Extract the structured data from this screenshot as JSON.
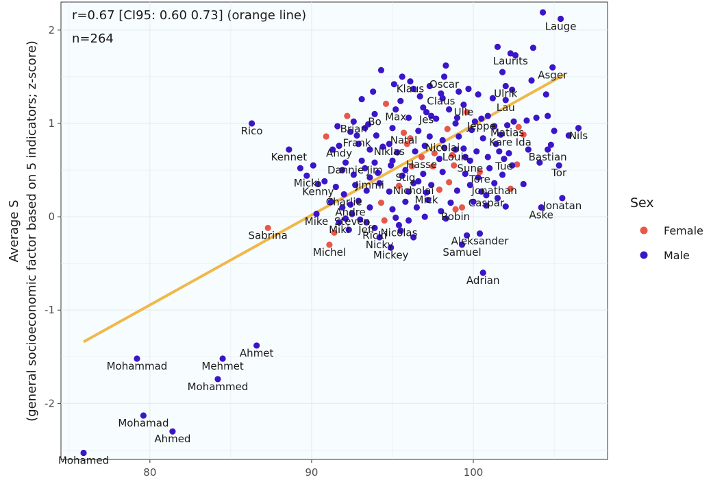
{
  "chart_data": {
    "type": "scatter",
    "annotations": [
      "r=0.67 [CI95: 0.60 0.73] (orange line)",
      "n=264"
    ],
    "ylabel_lines": [
      "Average S",
      "(general socioeconomic factor based on 5 indicators; z-score)"
    ],
    "xlabel": "",
    "xlim": [
      74.5,
      108.3
    ],
    "ylim": [
      -2.6,
      2.3
    ],
    "x_ticks": [
      80,
      90,
      100
    ],
    "y_ticks": [
      2,
      1,
      0,
      -1,
      -2
    ],
    "grid": true,
    "legend": {
      "title": "Sex",
      "placement": "right",
      "entries": [
        {
          "label": "Female",
          "color": "#e8584a"
        },
        {
          "label": "Male",
          "color": "#3a16c8"
        }
      ]
    },
    "fit_line": {
      "color": "#f0b84a",
      "from": [
        75.9,
        -1.34
      ],
      "to": [
        105.6,
        1.52
      ]
    },
    "colors": {
      "Female": "#e8584a",
      "Male": "#3a16c8"
    },
    "labeled_points": [
      {
        "name": "Lauge",
        "x": 105.4,
        "y": 2.12,
        "sex": "Male"
      },
      {
        "name": "Laurits",
        "x": 102.3,
        "y": 1.75,
        "sex": "Male"
      },
      {
        "name": "Asger",
        "x": 104.9,
        "y": 1.6,
        "sex": "Male"
      },
      {
        "name": "Oscar",
        "x": 98.2,
        "y": 1.5,
        "sex": "Male"
      },
      {
        "name": "Ulrik",
        "x": 102.0,
        "y": 1.4,
        "sex": "Male"
      },
      {
        "name": "Klaus",
        "x": 96.1,
        "y": 1.45,
        "sex": "Male"
      },
      {
        "name": "Claus",
        "x": 98.0,
        "y": 1.32,
        "sex": "Male"
      },
      {
        "name": "Lau",
        "x": 102.0,
        "y": 1.25,
        "sex": "Male"
      },
      {
        "name": "Ulle",
        "x": 99.4,
        "y": 1.2,
        "sex": "Male"
      },
      {
        "name": "Bo",
        "x": 93.9,
        "y": 1.1,
        "sex": "Male"
      },
      {
        "name": "Max",
        "x": 95.2,
        "y": 1.15,
        "sex": "Male"
      },
      {
        "name": "Jes",
        "x": 97.1,
        "y": 1.12,
        "sex": "Male"
      },
      {
        "name": "Brian",
        "x": 92.6,
        "y": 1.02,
        "sex": "Male"
      },
      {
        "name": "Jeppe",
        "x": 100.5,
        "y": 1.05,
        "sex": "Male"
      },
      {
        "name": "Matias",
        "x": 102.1,
        "y": 0.98,
        "sex": "Male"
      },
      {
        "name": "Nils",
        "x": 106.5,
        "y": 0.95,
        "sex": "Male"
      },
      {
        "name": "Rico",
        "x": 86.3,
        "y": 1.0,
        "sex": "Male"
      },
      {
        "name": "Frank",
        "x": 92.8,
        "y": 0.87,
        "sex": "Male"
      },
      {
        "name": "Natal",
        "x": 95.7,
        "y": 0.9,
        "sex": "Female"
      },
      {
        "name": "Kare",
        "x": 101.7,
        "y": 0.88,
        "sex": "Male"
      },
      {
        "name": "Ida",
        "x": 103.1,
        "y": 0.88,
        "sex": "Female"
      },
      {
        "name": "Niklas",
        "x": 94.8,
        "y": 0.78,
        "sex": "Male"
      },
      {
        "name": "Nicolai",
        "x": 98.1,
        "y": 0.82,
        "sex": "Male"
      },
      {
        "name": "Andy",
        "x": 91.7,
        "y": 0.76,
        "sex": "Male"
      },
      {
        "name": "Kennet",
        "x": 88.6,
        "y": 0.72,
        "sex": "Male"
      },
      {
        "name": "Bastian",
        "x": 104.6,
        "y": 0.72,
        "sex": "Male"
      },
      {
        "name": "Louis",
        "x": 98.9,
        "y": 0.72,
        "sex": "Male"
      },
      {
        "name": "Hasse",
        "x": 96.8,
        "y": 0.64,
        "sex": "Female"
      },
      {
        "name": "Tue",
        "x": 101.9,
        "y": 0.62,
        "sex": "Male"
      },
      {
        "name": "Sune",
        "x": 99.8,
        "y": 0.6,
        "sex": "Male"
      },
      {
        "name": "Dannie",
        "x": 92.1,
        "y": 0.58,
        "sex": "Male"
      },
      {
        "name": "Jim",
        "x": 93.9,
        "y": 0.58,
        "sex": "Male"
      },
      {
        "name": "Tor",
        "x": 105.3,
        "y": 0.55,
        "sex": "Male"
      },
      {
        "name": "Stig",
        "x": 95.8,
        "y": 0.5,
        "sex": "Male"
      },
      {
        "name": "Tore",
        "x": 100.4,
        "y": 0.48,
        "sex": "Female"
      },
      {
        "name": "Micki",
        "x": 89.7,
        "y": 0.44,
        "sex": "Male"
      },
      {
        "name": "Jimmi",
        "x": 93.6,
        "y": 0.42,
        "sex": "Male"
      },
      {
        "name": "Kenny",
        "x": 90.4,
        "y": 0.35,
        "sex": "Male"
      },
      {
        "name": "Nicholai",
        "x": 96.3,
        "y": 0.36,
        "sex": "Male"
      },
      {
        "name": "Jonathan",
        "x": 101.3,
        "y": 0.36,
        "sex": "Male"
      },
      {
        "name": "Mick",
        "x": 97.1,
        "y": 0.26,
        "sex": "Male"
      },
      {
        "name": "Charlie",
        "x": 92.0,
        "y": 0.24,
        "sex": "Male"
      },
      {
        "name": "Caspar",
        "x": 100.8,
        "y": 0.23,
        "sex": "Male"
      },
      {
        "name": "Jonatan",
        "x": 105.5,
        "y": 0.2,
        "sex": "Male"
      },
      {
        "name": "Andre",
        "x": 92.4,
        "y": 0.13,
        "sex": "Male"
      },
      {
        "name": "Aske",
        "x": 104.2,
        "y": 0.1,
        "sex": "Male"
      },
      {
        "name": "Robin",
        "x": 98.9,
        "y": 0.08,
        "sex": "Female"
      },
      {
        "name": "Mike",
        "x": 90.3,
        "y": 0.03,
        "sex": "Male"
      },
      {
        "name": "Steven",
        "x": 92.5,
        "y": 0.03,
        "sex": "Male"
      },
      {
        "name": "Jeff",
        "x": 93.4,
        "y": -0.06,
        "sex": "Male"
      },
      {
        "name": "Miki",
        "x": 91.7,
        "y": -0.06,
        "sex": "Male"
      },
      {
        "name": "Nicolas",
        "x": 95.4,
        "y": -0.09,
        "sex": "Male"
      },
      {
        "name": "Ricki",
        "x": 93.9,
        "y": -0.12,
        "sex": "Male"
      },
      {
        "name": "Sabrina",
        "x": 87.3,
        "y": -0.12,
        "sex": "Female"
      },
      {
        "name": "Nicky",
        "x": 94.2,
        "y": -0.22,
        "sex": "Male"
      },
      {
        "name": "Aleksander",
        "x": 100.4,
        "y": -0.18,
        "sex": "Male"
      },
      {
        "name": "Michel",
        "x": 91.1,
        "y": -0.3,
        "sex": "Female"
      },
      {
        "name": "Samuel",
        "x": 99.3,
        "y": -0.3,
        "sex": "Male"
      },
      {
        "name": "Mickey",
        "x": 94.9,
        "y": -0.33,
        "sex": "Male"
      },
      {
        "name": "Adrian",
        "x": 100.6,
        "y": -0.6,
        "sex": "Male"
      },
      {
        "name": "Ahmet",
        "x": 86.6,
        "y": -1.38,
        "sex": "Male"
      },
      {
        "name": "Mohammad",
        "x": 79.2,
        "y": -1.52,
        "sex": "Male"
      },
      {
        "name": "Mehmet",
        "x": 84.5,
        "y": -1.52,
        "sex": "Male"
      },
      {
        "name": "Mohammed",
        "x": 84.2,
        "y": -1.74,
        "sex": "Male"
      },
      {
        "name": "Mohamad",
        "x": 79.6,
        "y": -2.13,
        "sex": "Male"
      },
      {
        "name": "Ahmed",
        "x": 81.4,
        "y": -2.3,
        "sex": "Male"
      },
      {
        "name": "Mohamed",
        "x": 75.9,
        "y": -2.53,
        "sex": "Male"
      }
    ],
    "unlabeled_points": [
      {
        "x": 94.3,
        "y": 1.57,
        "sex": "Male"
      },
      {
        "x": 95.1,
        "y": 1.42,
        "sex": "Male"
      },
      {
        "x": 95.6,
        "y": 1.5,
        "sex": "Male"
      },
      {
        "x": 96.3,
        "y": 1.37,
        "sex": "Male"
      },
      {
        "x": 96.7,
        "y": 1.29,
        "sex": "Male"
      },
      {
        "x": 97.3,
        "y": 1.4,
        "sex": "Male"
      },
      {
        "x": 98.1,
        "y": 1.27,
        "sex": "Male"
      },
      {
        "x": 99.1,
        "y": 1.34,
        "sex": "Male"
      },
      {
        "x": 99.7,
        "y": 1.37,
        "sex": "Male"
      },
      {
        "x": 100.3,
        "y": 1.31,
        "sex": "Male"
      },
      {
        "x": 101.2,
        "y": 1.27,
        "sex": "Male"
      },
      {
        "x": 103.7,
        "y": 1.81,
        "sex": "Male"
      },
      {
        "x": 101.5,
        "y": 1.82,
        "sex": "Male"
      },
      {
        "x": 104.3,
        "y": 2.19,
        "sex": "Male"
      },
      {
        "x": 102.6,
        "y": 1.73,
        "sex": "Male"
      },
      {
        "x": 101.8,
        "y": 1.55,
        "sex": "Male"
      },
      {
        "x": 103.6,
        "y": 1.46,
        "sex": "Male"
      },
      {
        "x": 102.4,
        "y": 1.36,
        "sex": "Male"
      },
      {
        "x": 93.1,
        "y": 1.26,
        "sex": "Male"
      },
      {
        "x": 93.8,
        "y": 1.34,
        "sex": "Male"
      },
      {
        "x": 94.6,
        "y": 1.21,
        "sex": "Female"
      },
      {
        "x": 95.5,
        "y": 1.24,
        "sex": "Male"
      },
      {
        "x": 96.9,
        "y": 1.17,
        "sex": "Male"
      },
      {
        "x": 97.7,
        "y": 1.05,
        "sex": "Male"
      },
      {
        "x": 98.5,
        "y": 1.15,
        "sex": "Male"
      },
      {
        "x": 99.0,
        "y": 1.06,
        "sex": "Male"
      },
      {
        "x": 99.6,
        "y": 1.12,
        "sex": "Female"
      },
      {
        "x": 100.1,
        "y": 1.02,
        "sex": "Male"
      },
      {
        "x": 100.9,
        "y": 1.08,
        "sex": "Male"
      },
      {
        "x": 101.3,
        "y": 0.97,
        "sex": "Male"
      },
      {
        "x": 102.5,
        "y": 1.02,
        "sex": "Male"
      },
      {
        "x": 103.3,
        "y": 1.03,
        "sex": "Male"
      },
      {
        "x": 103.9,
        "y": 1.06,
        "sex": "Male"
      },
      {
        "x": 104.6,
        "y": 1.08,
        "sex": "Male"
      },
      {
        "x": 105.0,
        "y": 0.92,
        "sex": "Male"
      },
      {
        "x": 105.9,
        "y": 0.87,
        "sex": "Male"
      },
      {
        "x": 102.8,
        "y": 0.96,
        "sex": "Female"
      },
      {
        "x": 92.2,
        "y": 1.08,
        "sex": "Female"
      },
      {
        "x": 91.6,
        "y": 0.97,
        "sex": "Male"
      },
      {
        "x": 92.4,
        "y": 0.91,
        "sex": "Male"
      },
      {
        "x": 93.3,
        "y": 0.95,
        "sex": "Male"
      },
      {
        "x": 94.0,
        "y": 0.87,
        "sex": "Male"
      },
      {
        "x": 95.0,
        "y": 0.95,
        "sex": "Male"
      },
      {
        "x": 96.1,
        "y": 0.84,
        "sex": "Female"
      },
      {
        "x": 96.6,
        "y": 0.92,
        "sex": "Male"
      },
      {
        "x": 97.3,
        "y": 0.86,
        "sex": "Male"
      },
      {
        "x": 98.4,
        "y": 0.94,
        "sex": "Female"
      },
      {
        "x": 99.1,
        "y": 0.86,
        "sex": "Male"
      },
      {
        "x": 99.9,
        "y": 0.93,
        "sex": "Male"
      },
      {
        "x": 100.6,
        "y": 0.84,
        "sex": "Male"
      },
      {
        "x": 101.4,
        "y": 0.78,
        "sex": "Male"
      },
      {
        "x": 90.9,
        "y": 0.86,
        "sex": "Female"
      },
      {
        "x": 91.3,
        "y": 0.72,
        "sex": "Male"
      },
      {
        "x": 92.9,
        "y": 0.78,
        "sex": "Male"
      },
      {
        "x": 93.6,
        "y": 0.72,
        "sex": "Male"
      },
      {
        "x": 94.4,
        "y": 0.75,
        "sex": "Male"
      },
      {
        "x": 95.3,
        "y": 0.69,
        "sex": "Male"
      },
      {
        "x": 95.9,
        "y": 0.78,
        "sex": "Female"
      },
      {
        "x": 96.4,
        "y": 0.7,
        "sex": "Male"
      },
      {
        "x": 97.0,
        "y": 0.76,
        "sex": "Male"
      },
      {
        "x": 97.6,
        "y": 0.68,
        "sex": "Female"
      },
      {
        "x": 98.2,
        "y": 0.74,
        "sex": "Male"
      },
      {
        "x": 98.7,
        "y": 0.66,
        "sex": "Female"
      },
      {
        "x": 99.4,
        "y": 0.73,
        "sex": "Male"
      },
      {
        "x": 100.2,
        "y": 0.7,
        "sex": "Male"
      },
      {
        "x": 100.9,
        "y": 0.64,
        "sex": "Male"
      },
      {
        "x": 101.6,
        "y": 0.7,
        "sex": "Male"
      },
      {
        "x": 102.2,
        "y": 0.68,
        "sex": "Male"
      },
      {
        "x": 102.7,
        "y": 0.56,
        "sex": "Female"
      },
      {
        "x": 103.4,
        "y": 0.72,
        "sex": "Male"
      },
      {
        "x": 104.1,
        "y": 0.58,
        "sex": "Male"
      },
      {
        "x": 104.8,
        "y": 0.77,
        "sex": "Male"
      },
      {
        "x": 89.3,
        "y": 0.52,
        "sex": "Male"
      },
      {
        "x": 90.1,
        "y": 0.55,
        "sex": "Male"
      },
      {
        "x": 91.9,
        "y": 0.5,
        "sex": "Male"
      },
      {
        "x": 92.6,
        "y": 0.45,
        "sex": "Male"
      },
      {
        "x": 93.3,
        "y": 0.52,
        "sex": "Male"
      },
      {
        "x": 94.1,
        "y": 0.47,
        "sex": "Male"
      },
      {
        "x": 94.9,
        "y": 0.55,
        "sex": "Male"
      },
      {
        "x": 95.6,
        "y": 0.44,
        "sex": "Male"
      },
      {
        "x": 96.2,
        "y": 0.54,
        "sex": "Female"
      },
      {
        "x": 96.9,
        "y": 0.46,
        "sex": "Male"
      },
      {
        "x": 97.5,
        "y": 0.54,
        "sex": "Female"
      },
      {
        "x": 98.1,
        "y": 0.48,
        "sex": "Male"
      },
      {
        "x": 98.8,
        "y": 0.55,
        "sex": "Female"
      },
      {
        "x": 99.5,
        "y": 0.46,
        "sex": "Male"
      },
      {
        "x": 101.0,
        "y": 0.52,
        "sex": "Male"
      },
      {
        "x": 101.8,
        "y": 0.45,
        "sex": "Male"
      },
      {
        "x": 102.4,
        "y": 0.55,
        "sex": "Male"
      },
      {
        "x": 90.8,
        "y": 0.38,
        "sex": "Male"
      },
      {
        "x": 91.5,
        "y": 0.32,
        "sex": "Male"
      },
      {
        "x": 92.7,
        "y": 0.34,
        "sex": "Male"
      },
      {
        "x": 93.4,
        "y": 0.28,
        "sex": "Male"
      },
      {
        "x": 94.2,
        "y": 0.36,
        "sex": "Male"
      },
      {
        "x": 94.8,
        "y": 0.27,
        "sex": "Male"
      },
      {
        "x": 95.4,
        "y": 0.33,
        "sex": "Female"
      },
      {
        "x": 96.0,
        "y": 0.27,
        "sex": "Male"
      },
      {
        "x": 96.6,
        "y": 0.38,
        "sex": "Male"
      },
      {
        "x": 97.4,
        "y": 0.34,
        "sex": "Male"
      },
      {
        "x": 97.9,
        "y": 0.29,
        "sex": "Female"
      },
      {
        "x": 98.5,
        "y": 0.37,
        "sex": "Female"
      },
      {
        "x": 99.0,
        "y": 0.28,
        "sex": "Male"
      },
      {
        "x": 99.8,
        "y": 0.34,
        "sex": "Male"
      },
      {
        "x": 100.5,
        "y": 0.27,
        "sex": "Male"
      },
      {
        "x": 102.3,
        "y": 0.3,
        "sex": "Female"
      },
      {
        "x": 103.1,
        "y": 0.35,
        "sex": "Male"
      },
      {
        "x": 91.2,
        "y": 0.16,
        "sex": "Male"
      },
      {
        "x": 91.9,
        "y": 0.1,
        "sex": "Male"
      },
      {
        "x": 92.9,
        "y": 0.17,
        "sex": "Male"
      },
      {
        "x": 93.6,
        "y": 0.1,
        "sex": "Male"
      },
      {
        "x": 94.3,
        "y": 0.15,
        "sex": "Female"
      },
      {
        "x": 95.0,
        "y": 0.08,
        "sex": "Male"
      },
      {
        "x": 95.8,
        "y": 0.16,
        "sex": "Male"
      },
      {
        "x": 96.5,
        "y": 0.1,
        "sex": "Male"
      },
      {
        "x": 97.2,
        "y": 0.18,
        "sex": "Male"
      },
      {
        "x": 98.0,
        "y": 0.06,
        "sex": "Male"
      },
      {
        "x": 98.6,
        "y": 0.15,
        "sex": "Male"
      },
      {
        "x": 99.3,
        "y": 0.1,
        "sex": "Female"
      },
      {
        "x": 100.0,
        "y": 0.16,
        "sex": "Male"
      },
      {
        "x": 101.5,
        "y": 0.2,
        "sex": "Male"
      },
      {
        "x": 102.0,
        "y": 0.11,
        "sex": "Male"
      },
      {
        "x": 92.1,
        "y": -0.02,
        "sex": "Male"
      },
      {
        "x": 93.0,
        "y": -0.03,
        "sex": "Male"
      },
      {
        "x": 94.5,
        "y": -0.04,
        "sex": "Female"
      },
      {
        "x": 95.2,
        "y": -0.01,
        "sex": "Male"
      },
      {
        "x": 96.0,
        "y": -0.04,
        "sex": "Male"
      },
      {
        "x": 97.0,
        "y": 0.0,
        "sex": "Male"
      },
      {
        "x": 98.3,
        "y": -0.02,
        "sex": "Male"
      },
      {
        "x": 91.4,
        "y": -0.17,
        "sex": "Female"
      },
      {
        "x": 92.3,
        "y": -0.14,
        "sex": "Male"
      },
      {
        "x": 95.5,
        "y": -0.15,
        "sex": "Male"
      },
      {
        "x": 96.3,
        "y": -0.22,
        "sex": "Male"
      },
      {
        "x": 99.6,
        "y": -0.2,
        "sex": "Male"
      },
      {
        "x": 93.5,
        "y": 0.99,
        "sex": "Male"
      },
      {
        "x": 97.4,
        "y": 1.08,
        "sex": "Male"
      },
      {
        "x": 98.9,
        "y": 1.0,
        "sex": "Male"
      },
      {
        "x": 104.5,
        "y": 1.31,
        "sex": "Male"
      },
      {
        "x": 99.5,
        "y": 0.64,
        "sex": "Male"
      },
      {
        "x": 100.8,
        "y": 0.12,
        "sex": "Male"
      },
      {
        "x": 95.0,
        "y": 0.6,
        "sex": "Male"
      },
      {
        "x": 97.9,
        "y": 0.62,
        "sex": "Male"
      },
      {
        "x": 100.3,
        "y": 0.42,
        "sex": "Male"
      },
      {
        "x": 93.1,
        "y": 0.6,
        "sex": "Male"
      },
      {
        "x": 98.3,
        "y": 1.62,
        "sex": "Male"
      },
      {
        "x": 96.0,
        "y": 1.06,
        "sex": "Male"
      }
    ]
  }
}
